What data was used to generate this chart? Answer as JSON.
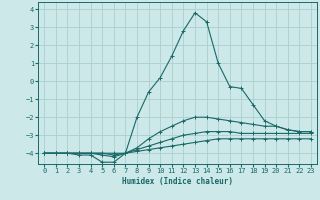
{
  "xlabel": "Humidex (Indice chaleur)",
  "xlim": [
    -0.5,
    23.5
  ],
  "ylim": [
    -4.6,
    4.4
  ],
  "xticks": [
    0,
    1,
    2,
    3,
    4,
    5,
    6,
    7,
    8,
    9,
    10,
    11,
    12,
    13,
    14,
    15,
    16,
    17,
    18,
    19,
    20,
    21,
    22,
    23
  ],
  "yticks": [
    -4,
    -3,
    -2,
    -1,
    0,
    1,
    2,
    3,
    4
  ],
  "background_color": "#cce8e8",
  "grid_color": "#aad0d0",
  "line_color": "#1a6868",
  "lines": [
    {
      "x": [
        0,
        1,
        2,
        3,
        4,
        5,
        6,
        7,
        8,
        9,
        10,
        11,
        12,
        13,
        14,
        15,
        16,
        17,
        18,
        19,
        20,
        21,
        22,
        23
      ],
      "y": [
        -4.0,
        -4.0,
        -4.0,
        -4.1,
        -4.1,
        -4.5,
        -4.5,
        -4.0,
        -2.0,
        -0.6,
        0.2,
        1.4,
        2.8,
        3.8,
        3.3,
        1.0,
        -0.3,
        -0.4,
        -1.3,
        -2.2,
        -2.5,
        -2.7,
        -2.8,
        -2.8
      ]
    },
    {
      "x": [
        0,
        1,
        2,
        3,
        4,
        5,
        6,
        7,
        8,
        9,
        10,
        11,
        12,
        13,
        14,
        15,
        16,
        17,
        18,
        19,
        20,
        21,
        22,
        23
      ],
      "y": [
        -4.0,
        -4.0,
        -4.0,
        -4.0,
        -4.0,
        -4.1,
        -4.2,
        -4.0,
        -3.7,
        -3.2,
        -2.8,
        -2.5,
        -2.2,
        -2.0,
        -2.0,
        -2.1,
        -2.2,
        -2.3,
        -2.4,
        -2.5,
        -2.5,
        -2.7,
        -2.8,
        -2.8
      ]
    },
    {
      "x": [
        0,
        1,
        2,
        3,
        4,
        5,
        6,
        7,
        8,
        9,
        10,
        11,
        12,
        13,
        14,
        15,
        16,
        17,
        18,
        19,
        20,
        21,
        22,
        23
      ],
      "y": [
        -4.0,
        -4.0,
        -4.0,
        -4.0,
        -4.0,
        -4.0,
        -4.1,
        -4.0,
        -3.8,
        -3.6,
        -3.4,
        -3.2,
        -3.0,
        -2.9,
        -2.8,
        -2.8,
        -2.8,
        -2.9,
        -2.9,
        -2.9,
        -2.9,
        -2.9,
        -2.9,
        -2.9
      ]
    },
    {
      "x": [
        0,
        1,
        2,
        3,
        4,
        5,
        6,
        7,
        8,
        9,
        10,
        11,
        12,
        13,
        14,
        15,
        16,
        17,
        18,
        19,
        20,
        21,
        22,
        23
      ],
      "y": [
        -4.0,
        -4.0,
        -4.0,
        -4.0,
        -4.0,
        -4.0,
        -4.0,
        -4.0,
        -3.9,
        -3.8,
        -3.7,
        -3.6,
        -3.5,
        -3.4,
        -3.3,
        -3.2,
        -3.2,
        -3.2,
        -3.2,
        -3.2,
        -3.2,
        -3.2,
        -3.2,
        -3.2
      ]
    }
  ]
}
